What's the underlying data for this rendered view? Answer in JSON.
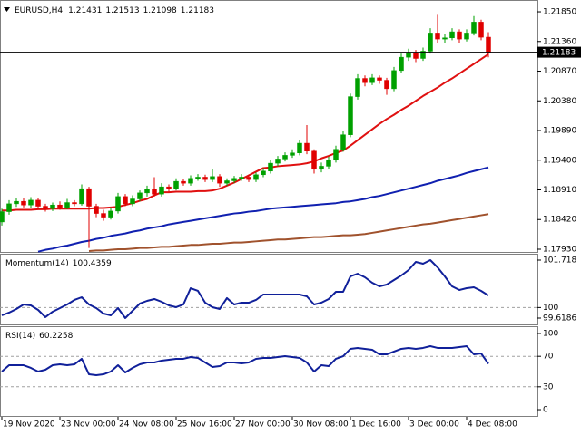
{
  "chart_data": [
    {
      "type": "candlestick",
      "title": "EURUSD,H4",
      "xlim": [
        -0.25,
        73.75
      ],
      "ylim": [
        1.17885,
        1.22015
      ],
      "yticks": [
        {
          "value": 1.2185,
          "label": "1.21850"
        },
        {
          "value": 1.2136,
          "label": "1.21360"
        },
        {
          "value": 1.2087,
          "label": "1.20870"
        },
        {
          "value": 1.2038,
          "label": "1.20380"
        },
        {
          "value": 1.1989,
          "label": "1.19890"
        },
        {
          "value": 1.194,
          "label": "1.19400"
        },
        {
          "value": 1.1891,
          "label": "1.18910"
        },
        {
          "value": 1.1842,
          "label": "1.18420"
        },
        {
          "value": 1.1793,
          "label": "1.17930"
        }
      ],
      "up_color": "#00a000",
      "down_color": "#e00000",
      "price_line_color": "#000000",
      "open": [
        1.1838,
        1.1855,
        1.1868,
        1.1872,
        1.1866,
        1.1874,
        1.1864,
        1.186,
        1.1866,
        1.1862,
        1.187,
        1.1868,
        1.1893,
        1.1864,
        1.1852,
        1.1846,
        1.1856,
        1.188,
        1.1868,
        1.1876,
        1.1886,
        1.1892,
        1.1884,
        1.1896,
        1.1893,
        1.1905,
        1.1902,
        1.191,
        1.1912,
        1.1908,
        1.1913,
        1.1902,
        1.1906,
        1.191,
        1.1912,
        1.1908,
        1.1916,
        1.1922,
        1.1935,
        1.1942,
        1.1948,
        1.1952,
        1.1968,
        1.1955,
        1.1925,
        1.193,
        1.194,
        1.1958,
        1.1982,
        1.2045,
        1.2075,
        1.2068,
        1.2076,
        1.2072,
        1.2058,
        1.2088,
        1.211,
        1.2118,
        1.2108,
        1.212,
        1.215,
        1.214,
        1.2142,
        1.2152,
        1.214,
        1.215,
        1.2168,
        1.21431
      ],
      "high": [
        1.186,
        1.1874,
        1.1878,
        1.1877,
        1.1879,
        1.1878,
        1.1868,
        1.187,
        1.1872,
        1.1876,
        1.1874,
        1.19,
        1.1896,
        1.1868,
        1.1858,
        1.1862,
        1.1886,
        1.1884,
        1.1882,
        1.189,
        1.1898,
        1.1912,
        1.1902,
        1.19,
        1.191,
        1.1909,
        1.1915,
        1.1917,
        1.1916,
        1.1925,
        1.1917,
        1.191,
        1.1914,
        1.1917,
        1.1916,
        1.192,
        1.1927,
        1.194,
        1.1947,
        1.1953,
        1.1958,
        1.1974,
        1.1998,
        1.1958,
        1.1936,
        1.1946,
        1.1964,
        1.1988,
        1.205,
        1.2082,
        1.208,
        1.2082,
        1.208,
        1.2076,
        1.2094,
        1.2116,
        1.2124,
        1.2122,
        1.2126,
        1.2158,
        1.218,
        1.2148,
        1.2158,
        1.2156,
        1.2156,
        1.2178,
        1.2172,
        1.21513
      ],
      "low": [
        1.1832,
        1.185,
        1.1863,
        1.1862,
        1.1861,
        1.1859,
        1.1855,
        1.1856,
        1.1858,
        1.1859,
        1.1864,
        1.1865,
        1.1795,
        1.1846,
        1.184,
        1.1842,
        1.1852,
        1.1864,
        1.1864,
        1.1872,
        1.188,
        1.188,
        1.188,
        1.1888,
        1.189,
        1.1898,
        1.1898,
        1.1906,
        1.1904,
        1.1904,
        1.1896,
        1.1898,
        1.1902,
        1.1906,
        1.1904,
        1.1904,
        1.1912,
        1.1918,
        1.193,
        1.1938,
        1.1944,
        1.1948,
        1.195,
        1.1918,
        1.192,
        1.1926,
        1.1936,
        1.1954,
        1.1978,
        1.204,
        1.2062,
        1.2064,
        1.2066,
        1.2048,
        1.2054,
        1.2084,
        1.2104,
        1.2102,
        1.2104,
        1.2116,
        1.2134,
        1.2134,
        1.2138,
        1.2134,
        1.2136,
        1.2146,
        1.2138,
        1.21098
      ],
      "close": [
        1.1855,
        1.1868,
        1.1872,
        1.1866,
        1.1874,
        1.1864,
        1.186,
        1.1866,
        1.1862,
        1.187,
        1.1868,
        1.1893,
        1.1864,
        1.1852,
        1.1846,
        1.1856,
        1.188,
        1.1868,
        1.1876,
        1.1886,
        1.1892,
        1.1884,
        1.1896,
        1.1893,
        1.1905,
        1.1902,
        1.191,
        1.1912,
        1.1908,
        1.1913,
        1.1902,
        1.1906,
        1.191,
        1.1912,
        1.1908,
        1.1916,
        1.1922,
        1.1935,
        1.1942,
        1.1948,
        1.1952,
        1.1968,
        1.1955,
        1.1925,
        1.193,
        1.194,
        1.1958,
        1.1982,
        1.2045,
        1.2075,
        1.2068,
        1.2076,
        1.2072,
        1.2058,
        1.2088,
        1.211,
        1.2118,
        1.2108,
        1.212,
        1.215,
        1.214,
        1.2142,
        1.2152,
        1.214,
        1.215,
        1.2168,
        1.2143,
        1.21183
      ],
      "lines": [
        {
          "color": "#e01010",
          "values": [
            1.1857,
            1.1857,
            1.1858,
            1.1858,
            1.1858,
            1.1859,
            1.1859,
            1.186,
            1.186,
            1.186,
            1.186,
            1.186,
            1.186,
            1.1861,
            1.1861,
            1.1862,
            1.1863,
            1.1866,
            1.1869,
            1.1873,
            1.1876,
            1.1882,
            1.1887,
            1.1887,
            1.1888,
            1.1888,
            1.1888,
            1.1889,
            1.1889,
            1.189,
            1.1893,
            1.1898,
            1.1903,
            1.1909,
            1.1915,
            1.1921,
            1.1927,
            1.1928,
            1.193,
            1.1931,
            1.1932,
            1.1933,
            1.1935,
            1.1938,
            1.1943,
            1.1947,
            1.1952,
            1.1956,
            1.1964,
            1.1973,
            1.1982,
            1.1991,
            1.2,
            1.2008,
            1.2015,
            1.2023,
            1.203,
            1.2038,
            1.2046,
            1.2053,
            1.206,
            1.2068,
            1.2075,
            1.2083,
            1.2091,
            1.2099,
            1.2107,
            1.2115
          ]
        },
        {
          "color": "#1020b0",
          "values": [
            null,
            null,
            null,
            null,
            null,
            1.1789,
            1.1792,
            1.1794,
            1.1797,
            1.1799,
            1.1802,
            1.1805,
            1.1807,
            1.181,
            1.1812,
            1.1815,
            1.1817,
            1.1819,
            1.1822,
            1.1824,
            1.1827,
            1.1829,
            1.1831,
            1.1834,
            1.1836,
            1.1838,
            1.184,
            1.1842,
            1.1844,
            1.1846,
            1.1848,
            1.185,
            1.1852,
            1.1853,
            1.1855,
            1.1856,
            1.1858,
            1.186,
            1.1861,
            1.1862,
            1.1863,
            1.1864,
            1.1865,
            1.1866,
            1.1867,
            1.1868,
            1.1869,
            1.1871,
            1.1872,
            1.1874,
            1.1876,
            1.1879,
            1.1881,
            1.1884,
            1.1887,
            1.189,
            1.1893,
            1.1896,
            1.1899,
            1.1902,
            1.1906,
            1.1909,
            1.1912,
            1.1915,
            1.1919,
            1.1922,
            1.1925,
            1.1928
          ]
        },
        {
          "color": "#a0522d",
          "values": [
            null,
            null,
            null,
            null,
            null,
            null,
            null,
            null,
            null,
            null,
            null,
            null,
            1.179,
            1.1791,
            1.1791,
            1.1792,
            1.1793,
            1.1793,
            1.1794,
            1.1795,
            1.1795,
            1.1796,
            1.1797,
            1.1797,
            1.1798,
            1.1799,
            1.18,
            1.18,
            1.1801,
            1.1802,
            1.1802,
            1.1803,
            1.1804,
            1.1804,
            1.1805,
            1.1806,
            1.1807,
            1.1808,
            1.1809,
            1.1809,
            1.181,
            1.1811,
            1.1812,
            1.1813,
            1.1813,
            1.1814,
            1.1815,
            1.1816,
            1.1816,
            1.1817,
            1.1818,
            1.182,
            1.1822,
            1.1824,
            1.1826,
            1.1828,
            1.183,
            1.1832,
            1.1834,
            1.1835,
            1.1837,
            1.1839,
            1.1841,
            1.1843,
            1.1845,
            1.1847,
            1.1849,
            1.1851
          ]
        }
      ]
    },
    {
      "type": "line",
      "title": "Momentum(14)",
      "color": "#10209a",
      "xlim": [
        -0.25,
        73.75
      ],
      "ylim": [
        99.389,
        101.915
      ],
      "yticks": [
        101.718,
        100,
        99.6186
      ],
      "levels": [
        100
      ],
      "values": [
        99.717,
        99.816,
        99.947,
        100.111,
        100.078,
        99.914,
        99.652,
        99.849,
        99.98,
        100.111,
        100.275,
        100.373,
        100.111,
        99.98,
        99.783,
        99.717,
        99.98,
        99.6186,
        99.881,
        100.144,
        100.242,
        100.308,
        100.209,
        100.078,
        100.013,
        100.111,
        100.701,
        100.603,
        100.176,
        100.013,
        99.947,
        100.341,
        100.111,
        100.176,
        100.176,
        100.275,
        100.472,
        100.472,
        100.472,
        100.472,
        100.472,
        100.472,
        100.406,
        100.111,
        100.176,
        100.308,
        100.57,
        100.57,
        101.128,
        101.226,
        101.095,
        100.898,
        100.767,
        100.832,
        100.996,
        101.16,
        101.357,
        101.652,
        101.587,
        101.718,
        101.456,
        101.128,
        100.767,
        100.636,
        100.701,
        100.734,
        100.603,
        100.4359
      ]
    },
    {
      "type": "line",
      "title": "RSI(14)",
      "color": "#10209a",
      "xlim": [
        -0.25,
        73.75
      ],
      "ylim": [
        -8.3,
        108.3
      ],
      "yticks": [
        100,
        70,
        30,
        0
      ],
      "levels": [
        70,
        30
      ],
      "values": [
        50.0,
        58.3,
        58.3,
        58.3,
        54.8,
        50.0,
        52.4,
        58.3,
        59.5,
        58.3,
        59.5,
        66.7,
        46.4,
        45.2,
        46.4,
        50.0,
        58.3,
        48.8,
        54.8,
        59.5,
        61.9,
        61.9,
        64.3,
        65.5,
        66.7,
        66.7,
        69.0,
        67.9,
        61.9,
        56.0,
        57.1,
        61.9,
        61.9,
        60.7,
        61.9,
        66.7,
        67.9,
        67.9,
        69.0,
        70.2,
        69.0,
        67.9,
        61.9,
        50.0,
        58.3,
        57.1,
        66.7,
        70.2,
        79.8,
        81.0,
        79.8,
        78.6,
        72.6,
        72.6,
        76.2,
        79.8,
        81.0,
        79.8,
        81.0,
        83.3,
        81.0,
        81.0,
        81.0,
        82.1,
        83.3,
        72.6,
        73.8,
        60.2258
      ],
      "xticks": [
        {
          "value": 0,
          "label": "19 Nov 2020"
        },
        {
          "value": 8,
          "label": "23 Nov 00:00"
        },
        {
          "value": 16,
          "label": "24 Nov 08:00"
        },
        {
          "value": 24,
          "label": "25 Nov 16:00"
        },
        {
          "value": 32,
          "label": "27 Nov 00:00"
        },
        {
          "value": 40,
          "label": "30 Nov 08:00"
        },
        {
          "value": 48,
          "label": "1 Dec 16:00"
        },
        {
          "value": 56,
          "label": "3 Dec 00:00"
        },
        {
          "value": 64,
          "label": "4 Dec 08:00"
        }
      ]
    }
  ]
}
